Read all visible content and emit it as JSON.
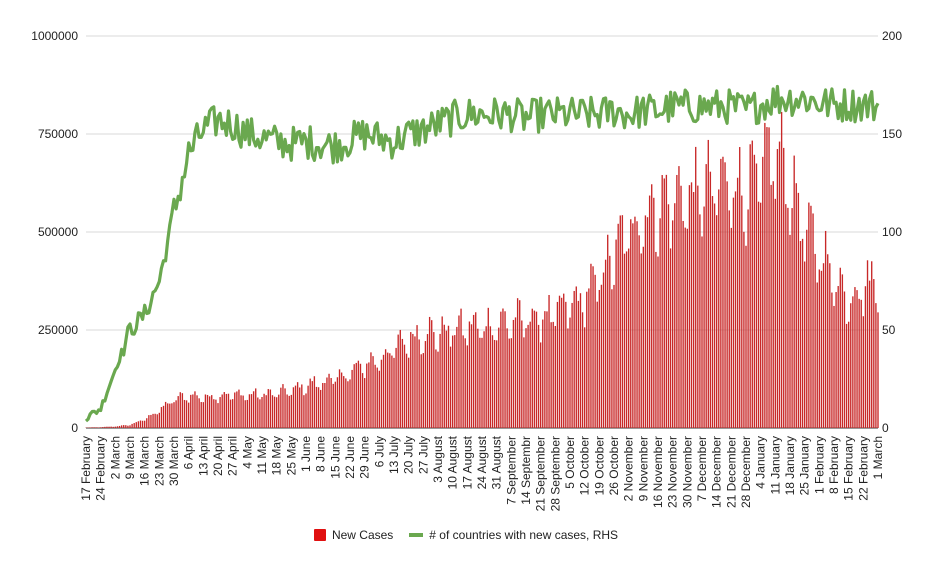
{
  "chart_data": {
    "type": "bar+line",
    "colors": {
      "bars": "#c82828",
      "line": "#6aa84f",
      "grid": "#d9d9d9"
    },
    "left_axis": {
      "ylim": [
        0,
        1000000
      ],
      "ticks": [
        "0",
        "250000",
        "500000",
        "750000",
        "1000000"
      ]
    },
    "right_axis": {
      "ylim": [
        0,
        200
      ],
      "ticks": [
        "0",
        "50",
        "100",
        "150",
        "200"
      ]
    },
    "x_tick_labels": [
      "17 February",
      "24 February",
      "2 March",
      "9 March",
      "16 March",
      "23 March",
      "30 March",
      "6 April",
      "13 April",
      "20 April",
      "27 April",
      "4 May",
      "11 May",
      "18 May",
      "25 May",
      "1 June",
      "8 June",
      "15 June",
      "22 June",
      "29 June",
      "6 July",
      "13 July",
      "20 July",
      "27 July",
      "3 August",
      "10 August",
      "17 August",
      "24 August",
      "31 August",
      "7 September",
      "14 Septembr",
      "21 September",
      "28 September",
      "5 October",
      "12 October",
      "19 October",
      "26 October",
      "2 November",
      "9 November",
      "16 November",
      "23 November",
      "30 November",
      "7 December",
      "14 December",
      "21 December",
      "28 December",
      "4 January",
      "11 January",
      "18 January",
      "25 January",
      "1 February",
      "8 February",
      "15 February",
      "22 February",
      "1 March"
    ],
    "weekly_new_cases_approx": [
      1000,
      2000,
      4000,
      8000,
      22000,
      45000,
      72000,
      82000,
      78000,
      82000,
      85000,
      83000,
      85000,
      88000,
      95000,
      108000,
      115000,
      125000,
      140000,
      160000,
      175000,
      200000,
      225000,
      240000,
      240000,
      250000,
      255000,
      258000,
      262000,
      270000,
      275000,
      280000,
      290000,
      310000,
      330000,
      380000,
      440000,
      500000,
      540000,
      560000,
      580000,
      585000,
      600000,
      610000,
      620000,
      600000,
      640000,
      700000,
      620000,
      500000,
      450000,
      380000,
      330000,
      360000,
      380000
    ],
    "weekly_countries_with_new_cases_approx": [
      5,
      10,
      30,
      50,
      58,
      75,
      110,
      140,
      152,
      157,
      155,
      150,
      148,
      146,
      145,
      146,
      145,
      144,
      147,
      150,
      148,
      146,
      150,
      152,
      155,
      158,
      160,
      160,
      160,
      160,
      158,
      160,
      160,
      160,
      160,
      160,
      162,
      160,
      162,
      162,
      164,
      164,
      164,
      164,
      164,
      162,
      165,
      168,
      168,
      168,
      166,
      165,
      165,
      165,
      164
    ],
    "legend": [
      {
        "label": "New Cases",
        "color": "#e01010"
      },
      {
        "label": "# of countries with new cases, RHS",
        "color": "#6aa84f"
      }
    ]
  }
}
